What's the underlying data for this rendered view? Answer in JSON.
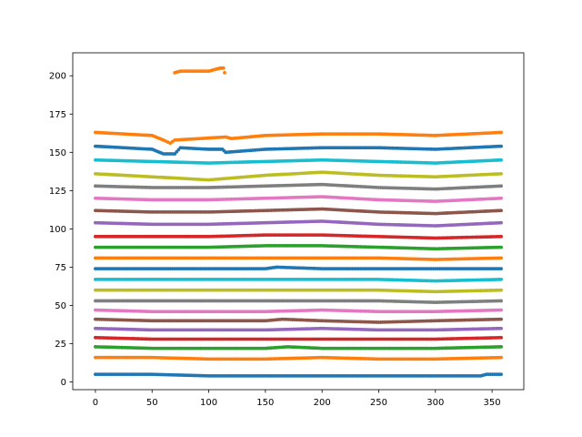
{
  "chart_data": {
    "type": "scatter",
    "title": "",
    "xlabel": "",
    "ylabel": "",
    "xlim": [
      -20,
      378
    ],
    "ylim": [
      -5,
      215
    ],
    "x_ticks": [
      0,
      50,
      100,
      150,
      200,
      250,
      300,
      350
    ],
    "y_ticks": [
      0,
      25,
      50,
      75,
      100,
      125,
      150,
      175,
      200
    ],
    "x_tick_labels": [
      "0",
      "50",
      "100",
      "150",
      "200",
      "250",
      "300",
      "350"
    ],
    "y_tick_labels": [
      "0",
      "25",
      "50",
      "75",
      "100",
      "125",
      "150",
      "175",
      "200"
    ],
    "grid": false,
    "legend": "none",
    "series": [
      {
        "color": "#1f77b4",
        "points": [
          [
            0,
            5
          ],
          [
            50,
            5
          ],
          [
            100,
            4
          ],
          [
            150,
            4
          ],
          [
            200,
            4
          ],
          [
            250,
            4
          ],
          [
            300,
            4
          ],
          [
            340,
            4
          ],
          [
            345,
            5
          ],
          [
            358,
            5
          ]
        ]
      },
      {
        "color": "#ff7f0e",
        "points": [
          [
            0,
            16
          ],
          [
            50,
            16
          ],
          [
            100,
            15
          ],
          [
            150,
            15
          ],
          [
            200,
            16
          ],
          [
            250,
            15
          ],
          [
            300,
            15
          ],
          [
            358,
            16
          ]
        ]
      },
      {
        "color": "#2ca02c",
        "points": [
          [
            0,
            23
          ],
          [
            50,
            22
          ],
          [
            100,
            22
          ],
          [
            150,
            22
          ],
          [
            170,
            23
          ],
          [
            200,
            22
          ],
          [
            250,
            22
          ],
          [
            300,
            22
          ],
          [
            358,
            23
          ]
        ]
      },
      {
        "color": "#d62728",
        "points": [
          [
            0,
            29
          ],
          [
            50,
            28
          ],
          [
            100,
            28
          ],
          [
            150,
            28
          ],
          [
            200,
            28
          ],
          [
            250,
            28
          ],
          [
            300,
            28
          ],
          [
            358,
            29
          ]
        ]
      },
      {
        "color": "#9467bd",
        "points": [
          [
            0,
            35
          ],
          [
            50,
            34
          ],
          [
            100,
            34
          ],
          [
            150,
            34
          ],
          [
            200,
            35
          ],
          [
            250,
            34
          ],
          [
            300,
            34
          ],
          [
            358,
            35
          ]
        ]
      },
      {
        "color": "#8c564b",
        "points": [
          [
            0,
            41
          ],
          [
            50,
            40
          ],
          [
            100,
            40
          ],
          [
            150,
            40
          ],
          [
            165,
            41
          ],
          [
            200,
            40
          ],
          [
            250,
            39
          ],
          [
            300,
            40
          ],
          [
            358,
            41
          ]
        ]
      },
      {
        "color": "#e377c2",
        "points": [
          [
            0,
            47
          ],
          [
            50,
            46
          ],
          [
            100,
            46
          ],
          [
            150,
            46
          ],
          [
            200,
            47
          ],
          [
            250,
            46
          ],
          [
            300,
            46
          ],
          [
            358,
            47
          ]
        ]
      },
      {
        "color": "#7f7f7f",
        "points": [
          [
            0,
            53
          ],
          [
            50,
            53
          ],
          [
            100,
            53
          ],
          [
            150,
            53
          ],
          [
            200,
            53
          ],
          [
            250,
            53
          ],
          [
            300,
            52
          ],
          [
            358,
            53
          ]
        ]
      },
      {
        "color": "#bcbd22",
        "points": [
          [
            0,
            60
          ],
          [
            50,
            60
          ],
          [
            100,
            60
          ],
          [
            150,
            60
          ],
          [
            200,
            60
          ],
          [
            250,
            60
          ],
          [
            300,
            59
          ],
          [
            358,
            60
          ]
        ]
      },
      {
        "color": "#17becf",
        "points": [
          [
            0,
            67
          ],
          [
            50,
            67
          ],
          [
            100,
            67
          ],
          [
            150,
            67
          ],
          [
            200,
            67
          ],
          [
            250,
            67
          ],
          [
            300,
            66
          ],
          [
            358,
            67
          ]
        ]
      },
      {
        "color": "#1f77b4",
        "points": [
          [
            0,
            74
          ],
          [
            50,
            74
          ],
          [
            100,
            74
          ],
          [
            150,
            74
          ],
          [
            160,
            75
          ],
          [
            200,
            74
          ],
          [
            250,
            74
          ],
          [
            300,
            74
          ],
          [
            358,
            74
          ]
        ]
      },
      {
        "color": "#ff7f0e",
        "points": [
          [
            0,
            81
          ],
          [
            50,
            81
          ],
          [
            100,
            81
          ],
          [
            150,
            81
          ],
          [
            200,
            81
          ],
          [
            250,
            81
          ],
          [
            300,
            80
          ],
          [
            358,
            81
          ]
        ]
      },
      {
        "color": "#2ca02c",
        "points": [
          [
            0,
            88
          ],
          [
            50,
            88
          ],
          [
            100,
            88
          ],
          [
            150,
            89
          ],
          [
            200,
            89
          ],
          [
            250,
            88
          ],
          [
            300,
            87
          ],
          [
            358,
            88
          ]
        ]
      },
      {
        "color": "#d62728",
        "points": [
          [
            0,
            95
          ],
          [
            50,
            95
          ],
          [
            100,
            95
          ],
          [
            150,
            96
          ],
          [
            200,
            96
          ],
          [
            250,
            95
          ],
          [
            300,
            94
          ],
          [
            358,
            95
          ]
        ]
      },
      {
        "color": "#9467bd",
        "points": [
          [
            0,
            104
          ],
          [
            50,
            103
          ],
          [
            100,
            103
          ],
          [
            150,
            104
          ],
          [
            200,
            105
          ],
          [
            250,
            103
          ],
          [
            300,
            102
          ],
          [
            358,
            104
          ]
        ]
      },
      {
        "color": "#8c564b",
        "points": [
          [
            0,
            112
          ],
          [
            50,
            111
          ],
          [
            100,
            111
          ],
          [
            150,
            112
          ],
          [
            200,
            113
          ],
          [
            250,
            111
          ],
          [
            300,
            110
          ],
          [
            358,
            112
          ]
        ]
      },
      {
        "color": "#e377c2",
        "points": [
          [
            0,
            120
          ],
          [
            50,
            119
          ],
          [
            100,
            119
          ],
          [
            150,
            120
          ],
          [
            200,
            121
          ],
          [
            250,
            119
          ],
          [
            300,
            118
          ],
          [
            358,
            120
          ]
        ]
      },
      {
        "color": "#7f7f7f",
        "points": [
          [
            0,
            128
          ],
          [
            50,
            127
          ],
          [
            100,
            127
          ],
          [
            150,
            128
          ],
          [
            200,
            129
          ],
          [
            250,
            127
          ],
          [
            300,
            126
          ],
          [
            358,
            128
          ]
        ]
      },
      {
        "color": "#bcbd22",
        "points": [
          [
            0,
            136
          ],
          [
            50,
            134
          ],
          [
            100,
            132
          ],
          [
            150,
            135
          ],
          [
            200,
            137
          ],
          [
            250,
            135
          ],
          [
            300,
            134
          ],
          [
            358,
            136
          ]
        ]
      },
      {
        "color": "#17becf",
        "points": [
          [
            0,
            145
          ],
          [
            50,
            144
          ],
          [
            100,
            143
          ],
          [
            150,
            144
          ],
          [
            200,
            145
          ],
          [
            250,
            144
          ],
          [
            300,
            143
          ],
          [
            358,
            145
          ]
        ]
      },
      {
        "color": "#1f77b4",
        "points": [
          [
            0,
            154
          ],
          [
            50,
            152
          ],
          [
            60,
            149
          ],
          [
            70,
            149
          ],
          [
            75,
            153
          ],
          [
            100,
            152
          ],
          [
            112,
            152
          ],
          [
            115,
            150
          ],
          [
            150,
            152
          ],
          [
            200,
            153
          ],
          [
            250,
            153
          ],
          [
            300,
            152
          ],
          [
            358,
            154
          ]
        ]
      },
      {
        "color": "#ff7f0e",
        "points": [
          [
            0,
            163
          ],
          [
            50,
            161
          ],
          [
            60,
            158
          ],
          [
            66,
            156
          ],
          [
            70,
            158
          ],
          [
            115,
            160
          ],
          [
            120,
            159
          ],
          [
            150,
            161
          ],
          [
            200,
            162
          ],
          [
            250,
            162
          ],
          [
            300,
            161
          ],
          [
            358,
            163
          ]
        ]
      },
      {
        "color": "#ff7f0e",
        "points": [
          [
            70,
            202
          ],
          [
            75,
            203
          ],
          [
            100,
            203
          ],
          [
            110,
            205
          ],
          [
            113,
            205
          ],
          [
            114,
            202
          ]
        ]
      }
    ]
  }
}
